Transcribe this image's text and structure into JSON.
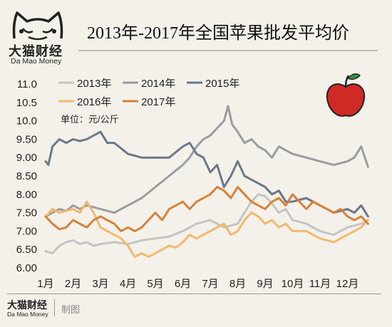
{
  "brand": {
    "name_cn": "大猫财经",
    "name_en": "Da Mao Money",
    "credit": "制图"
  },
  "chart_data": {
    "type": "line",
    "title": "2013年-2017年全国苹果批发平均价",
    "unit_label": "单位：元/公斤",
    "ylim": [
      6.0,
      11.0
    ],
    "yticks": [
      "11.0",
      "10.5",
      "10.0",
      "9.50",
      "9.00",
      "8.50",
      "8.00",
      "7.50",
      "7.00",
      "6.50",
      "6.00"
    ],
    "categories": [
      "1月",
      "2月",
      "3月",
      "4月",
      "5月",
      "6月",
      "7月",
      "8月",
      "9月",
      "10月",
      "11月",
      "12月"
    ],
    "grid": false,
    "legend_position": "top-left",
    "series": [
      {
        "name": "2013年",
        "color": "#c4c4c4",
        "x": [
          1,
          1.25,
          1.5,
          1.75,
          2,
          2.25,
          2.5,
          2.75,
          3,
          3.5,
          4,
          4.5,
          5,
          5.5,
          6,
          6.5,
          7,
          7.5,
          8,
          8.25,
          8.5,
          8.75,
          9,
          9.25,
          9.5,
          9.75,
          10,
          10.5,
          11,
          11.5,
          12,
          12.5,
          12.75
        ],
        "values": [
          6.45,
          6.4,
          6.6,
          6.7,
          6.75,
          6.65,
          6.7,
          6.6,
          6.65,
          6.7,
          6.65,
          6.75,
          6.8,
          6.85,
          7.0,
          7.2,
          7.3,
          7.1,
          7.2,
          7.5,
          7.8,
          8.0,
          7.95,
          7.75,
          7.5,
          7.6,
          7.3,
          7.2,
          7.0,
          6.9,
          7.1,
          7.2,
          7.3
        ]
      },
      {
        "name": "2014年",
        "color": "#9a9ca0",
        "x": [
          1,
          1.25,
          1.5,
          1.75,
          2,
          2.25,
          2.5,
          3,
          3.5,
          4,
          4.5,
          5,
          5.5,
          6,
          6.25,
          6.5,
          6.75,
          7,
          7.25,
          7.5,
          7.65,
          7.8,
          8,
          8.25,
          8.5,
          8.75,
          9,
          9.25,
          9.5,
          9.75,
          10,
          10.5,
          11,
          11.5,
          12,
          12.25,
          12.5,
          12.75
        ],
        "values": [
          7.4,
          7.5,
          7.6,
          7.55,
          7.7,
          7.6,
          7.7,
          7.6,
          7.5,
          7.7,
          7.9,
          8.2,
          8.5,
          8.8,
          9.0,
          9.3,
          9.5,
          9.6,
          9.8,
          10.0,
          10.4,
          9.9,
          9.7,
          9.4,
          9.5,
          9.3,
          9.2,
          9.0,
          9.3,
          9.2,
          9.1,
          9.0,
          8.9,
          8.8,
          8.9,
          9.0,
          9.3,
          8.75
        ]
      },
      {
        "name": "2015年",
        "color": "#6b7886",
        "x": [
          1,
          1.1,
          1.25,
          1.5,
          1.75,
          2,
          2.25,
          2.5,
          2.75,
          3,
          3.25,
          3.5,
          4,
          4.5,
          5,
          5.5,
          6,
          6.25,
          6.5,
          6.75,
          7,
          7.25,
          7.5,
          7.75,
          8,
          8.25,
          8.5,
          8.75,
          9,
          9.25,
          9.5,
          9.75,
          10,
          10.5,
          11,
          11.5,
          12,
          12.25,
          12.5,
          12.75
        ],
        "values": [
          8.9,
          8.8,
          9.3,
          9.5,
          9.4,
          9.5,
          9.45,
          9.5,
          9.6,
          9.7,
          9.4,
          9.4,
          9.1,
          9.0,
          9.0,
          9.0,
          9.3,
          9.4,
          9.1,
          9.0,
          8.6,
          8.8,
          8.2,
          8.5,
          8.9,
          8.5,
          8.4,
          8.3,
          8.2,
          8.0,
          8.1,
          7.8,
          7.8,
          7.9,
          7.7,
          7.5,
          7.6,
          7.5,
          7.7,
          7.4
        ]
      },
      {
        "name": "2016年",
        "color": "#f1b96c",
        "x": [
          1,
          1.25,
          1.5,
          1.75,
          2,
          2.25,
          2.5,
          2.75,
          3,
          3.25,
          3.5,
          3.75,
          4,
          4.25,
          4.5,
          4.75,
          5,
          5.25,
          5.5,
          5.75,
          6,
          6.25,
          6.5,
          6.75,
          7,
          7.25,
          7.5,
          7.75,
          8,
          8.25,
          8.5,
          8.75,
          9,
          9.25,
          9.5,
          9.75,
          10,
          10.5,
          11,
          11.5,
          12,
          12.25,
          12.5,
          12.75
        ],
        "values": [
          7.4,
          7.6,
          7.5,
          7.55,
          7.6,
          7.5,
          7.8,
          7.5,
          7.1,
          7.0,
          6.9,
          6.8,
          6.6,
          6.3,
          6.4,
          6.3,
          6.4,
          6.5,
          6.6,
          6.55,
          6.7,
          6.9,
          6.8,
          6.9,
          7.0,
          7.1,
          7.2,
          6.9,
          7.0,
          7.3,
          7.5,
          7.4,
          7.2,
          7.3,
          7.1,
          7.2,
          7.0,
          7.0,
          6.8,
          6.7,
          6.9,
          7.0,
          7.1,
          7.3
        ]
      },
      {
        "name": "2017年",
        "color": "#d7823a",
        "x": [
          1,
          1.25,
          1.5,
          1.75,
          2,
          2.25,
          2.5,
          2.75,
          3,
          3.25,
          3.5,
          3.75,
          4,
          4.25,
          4.5,
          4.75,
          5,
          5.25,
          5.5,
          5.75,
          6,
          6.25,
          6.5,
          6.75,
          7,
          7.25,
          7.5,
          7.75,
          8,
          8.25,
          8.5,
          8.75,
          9,
          9.25,
          9.5,
          9.75,
          10,
          10.25,
          10.5,
          10.75,
          11,
          11.25,
          11.5,
          11.75,
          12,
          12.25,
          12.5,
          12.75
        ],
        "values": [
          7.4,
          7.2,
          7.05,
          7.1,
          7.3,
          7.2,
          7.1,
          7.3,
          7.4,
          7.3,
          7.2,
          7.0,
          7.1,
          7.0,
          7.1,
          7.3,
          7.5,
          7.3,
          7.6,
          7.7,
          7.8,
          7.6,
          7.8,
          7.9,
          8.0,
          8.2,
          8.1,
          7.9,
          8.2,
          8.0,
          7.8,
          7.7,
          7.6,
          7.8,
          7.9,
          7.7,
          8.0,
          7.8,
          7.6,
          7.8,
          7.7,
          7.6,
          7.5,
          7.6,
          7.4,
          7.3,
          7.4,
          7.2
        ]
      }
    ]
  }
}
